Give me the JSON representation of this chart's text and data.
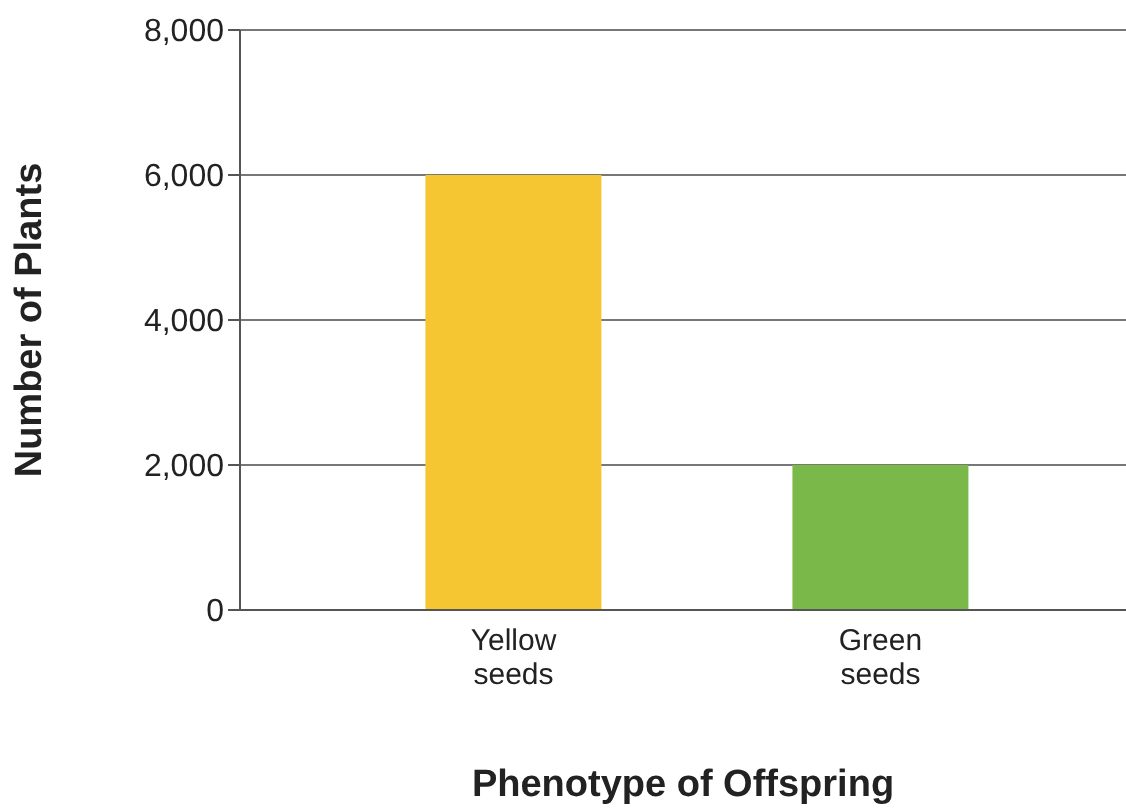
{
  "chart_data": {
    "type": "bar",
    "xlabel": "Phenotype of Offspring",
    "ylabel": "Number of Plants",
    "categories": [
      "Yellow seeds",
      "Green seeds"
    ],
    "values": [
      6000,
      2000
    ],
    "colors": [
      "#f6c532",
      "#7bb84a"
    ],
    "ylim": [
      0,
      8000
    ],
    "yticks": [
      {
        "value": 0,
        "label": "0"
      },
      {
        "value": 2000,
        "label": "2,000"
      },
      {
        "value": 4000,
        "label": "4,000"
      },
      {
        "value": 6000,
        "label": "6,000"
      },
      {
        "value": 8000,
        "label": "8,000"
      }
    ],
    "grid": "y"
  }
}
